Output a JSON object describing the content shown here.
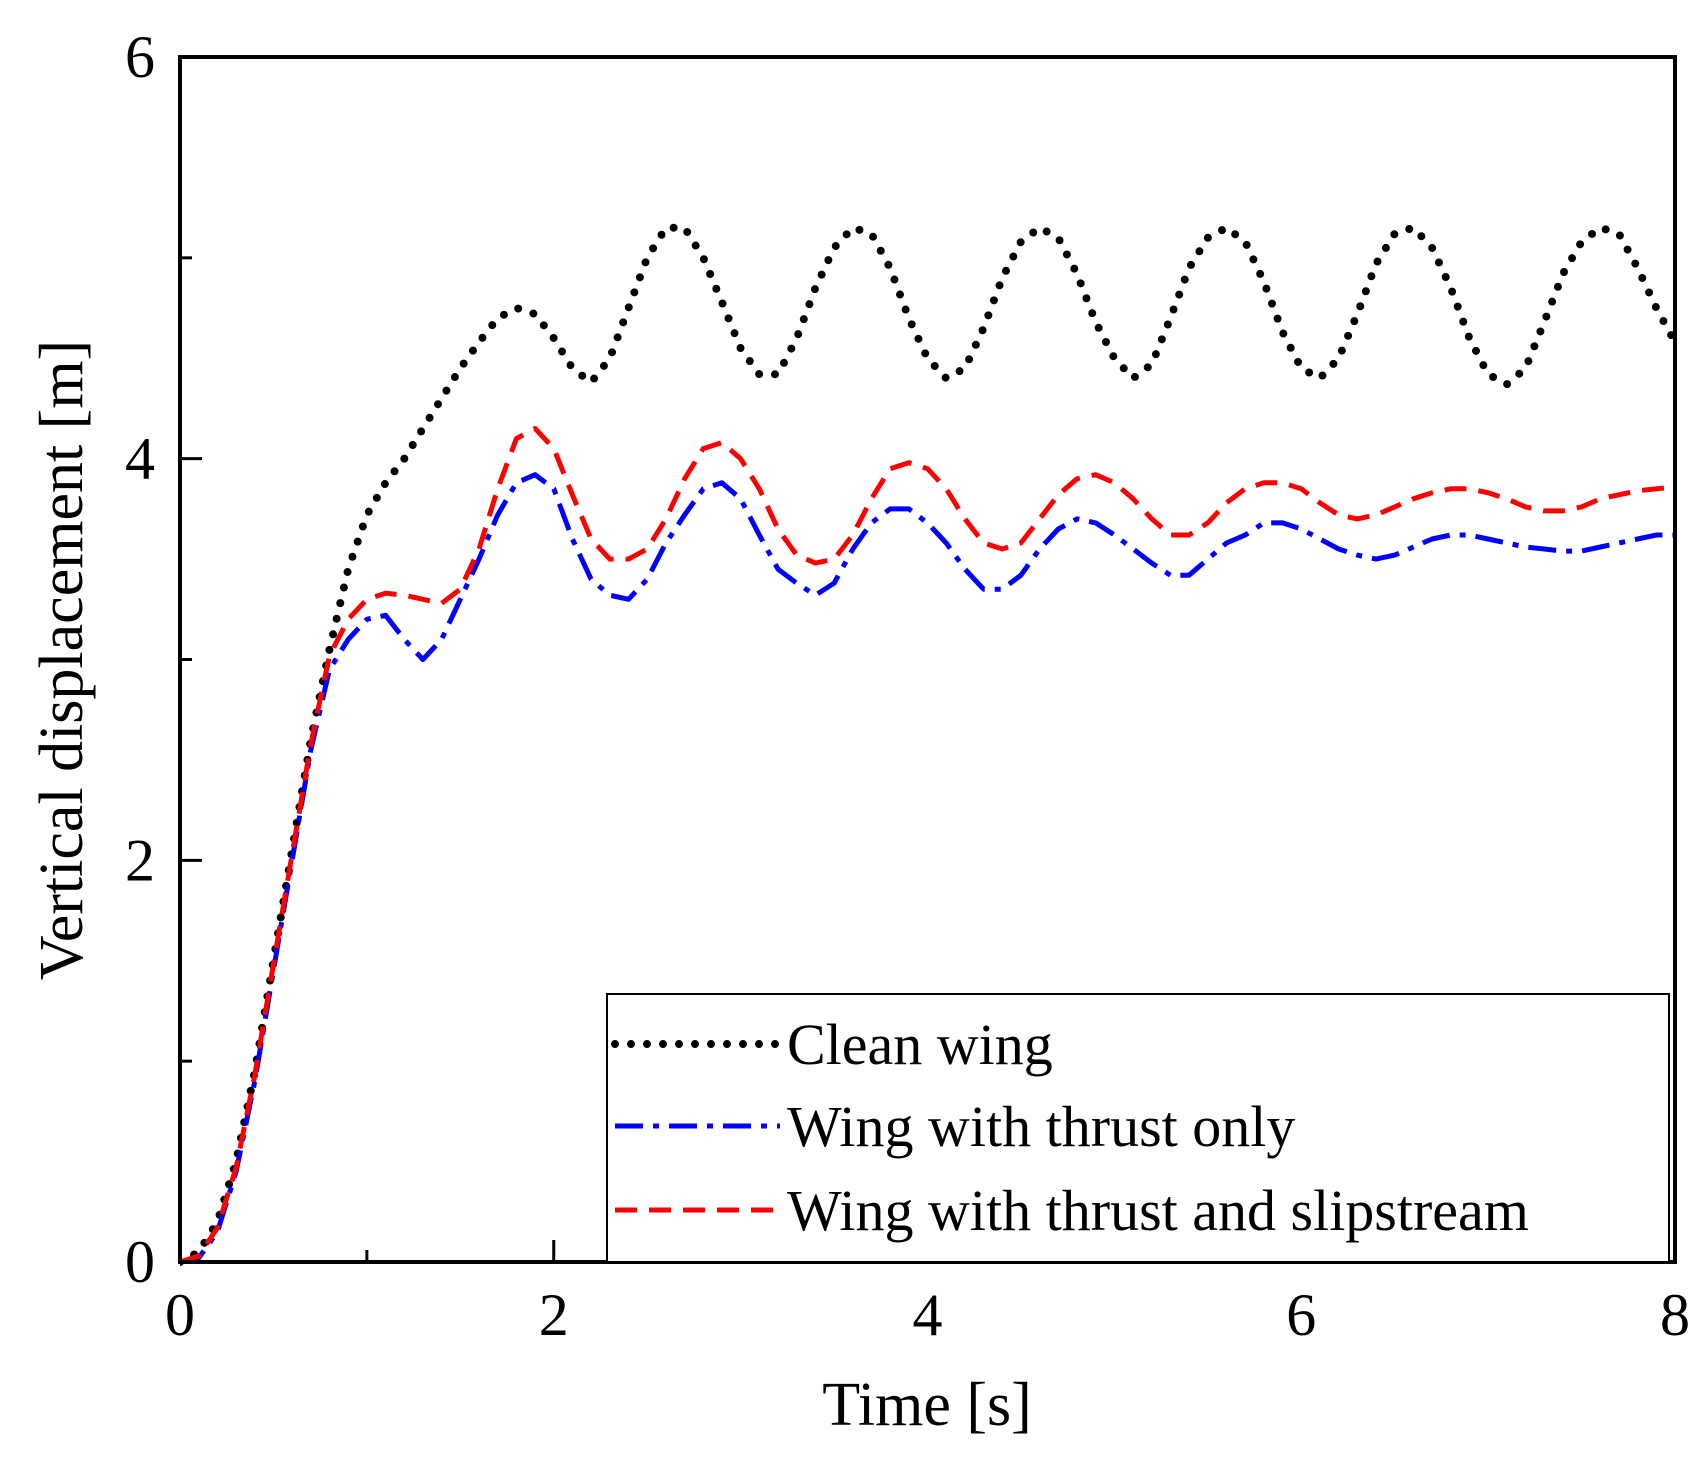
{
  "chart_data": {
    "type": "line",
    "title": "",
    "xlabel": "Time [s]",
    "ylabel": "Vertical displacement [m]",
    "xlim": [
      0,
      8
    ],
    "ylim": [
      0,
      6
    ],
    "xticks": [
      "0",
      "2",
      "4",
      "6",
      "8"
    ],
    "yticks": [
      "0",
      "2",
      "4",
      "6"
    ],
    "grid": false,
    "legend_position": "bottom-right",
    "series": [
      {
        "name": "Clean wing",
        "color": "#000000",
        "style": "dotted",
        "points": [
          [
            0,
            0
          ],
          [
            0.1,
            0.05
          ],
          [
            0.2,
            0.2
          ],
          [
            0.3,
            0.5
          ],
          [
            0.4,
            0.95
          ],
          [
            0.5,
            1.5
          ],
          [
            0.6,
            2.05
          ],
          [
            0.7,
            2.6
          ],
          [
            0.8,
            3.05
          ],
          [
            0.9,
            3.45
          ],
          [
            1.0,
            3.72
          ],
          [
            1.1,
            3.88
          ],
          [
            1.2,
            4.0
          ],
          [
            1.3,
            4.15
          ],
          [
            1.4,
            4.3
          ],
          [
            1.5,
            4.45
          ],
          [
            1.6,
            4.58
          ],
          [
            1.7,
            4.7
          ],
          [
            1.8,
            4.75
          ],
          [
            1.9,
            4.72
          ],
          [
            2.0,
            4.6
          ],
          [
            2.1,
            4.45
          ],
          [
            2.2,
            4.38
          ],
          [
            2.3,
            4.5
          ],
          [
            2.4,
            4.75
          ],
          [
            2.5,
            5.0
          ],
          [
            2.6,
            5.15
          ],
          [
            2.7,
            5.15
          ],
          [
            2.8,
            5.0
          ],
          [
            2.9,
            4.78
          ],
          [
            3.0,
            4.55
          ],
          [
            3.1,
            4.42
          ],
          [
            3.2,
            4.42
          ],
          [
            3.3,
            4.6
          ],
          [
            3.4,
            4.85
          ],
          [
            3.5,
            5.05
          ],
          [
            3.6,
            5.15
          ],
          [
            3.7,
            5.12
          ],
          [
            3.8,
            4.95
          ],
          [
            3.9,
            4.7
          ],
          [
            4.0,
            4.5
          ],
          [
            4.1,
            4.4
          ],
          [
            4.2,
            4.45
          ],
          [
            4.3,
            4.65
          ],
          [
            4.4,
            4.9
          ],
          [
            4.5,
            5.08
          ],
          [
            4.6,
            5.15
          ],
          [
            4.7,
            5.1
          ],
          [
            4.8,
            4.92
          ],
          [
            4.9,
            4.68
          ],
          [
            5.0,
            4.5
          ],
          [
            5.1,
            4.4
          ],
          [
            5.2,
            4.47
          ],
          [
            5.3,
            4.7
          ],
          [
            5.4,
            4.95
          ],
          [
            5.5,
            5.1
          ],
          [
            5.6,
            5.15
          ],
          [
            5.7,
            5.08
          ],
          [
            5.8,
            4.88
          ],
          [
            5.9,
            4.63
          ],
          [
            6.0,
            4.45
          ],
          [
            6.1,
            4.4
          ],
          [
            6.2,
            4.5
          ],
          [
            6.3,
            4.72
          ],
          [
            6.4,
            4.97
          ],
          [
            6.5,
            5.12
          ],
          [
            6.6,
            5.15
          ],
          [
            6.7,
            5.05
          ],
          [
            6.8,
            4.85
          ],
          [
            6.9,
            4.6
          ],
          [
            7.0,
            4.42
          ],
          [
            7.1,
            4.37
          ],
          [
            7.2,
            4.45
          ],
          [
            7.3,
            4.68
          ],
          [
            7.4,
            4.92
          ],
          [
            7.5,
            5.08
          ],
          [
            7.6,
            5.15
          ],
          [
            7.7,
            5.12
          ],
          [
            7.8,
            4.95
          ],
          [
            7.9,
            4.75
          ],
          [
            8.0,
            4.58
          ]
        ]
      },
      {
        "name": "Wing with thrust only",
        "color": "#0000ff",
        "style": "dash-dot",
        "points": [
          [
            0,
            0
          ],
          [
            0.1,
            0.02
          ],
          [
            0.2,
            0.15
          ],
          [
            0.3,
            0.45
          ],
          [
            0.4,
            0.9
          ],
          [
            0.5,
            1.45
          ],
          [
            0.6,
            2.0
          ],
          [
            0.7,
            2.55
          ],
          [
            0.8,
            2.95
          ],
          [
            0.9,
            3.1
          ],
          [
            1.0,
            3.2
          ],
          [
            1.1,
            3.22
          ],
          [
            1.2,
            3.1
          ],
          [
            1.3,
            3.0
          ],
          [
            1.4,
            3.1
          ],
          [
            1.5,
            3.3
          ],
          [
            1.6,
            3.5
          ],
          [
            1.7,
            3.72
          ],
          [
            1.8,
            3.88
          ],
          [
            1.9,
            3.92
          ],
          [
            2.0,
            3.85
          ],
          [
            2.1,
            3.6
          ],
          [
            2.2,
            3.4
          ],
          [
            2.3,
            3.32
          ],
          [
            2.4,
            3.3
          ],
          [
            2.5,
            3.4
          ],
          [
            2.6,
            3.58
          ],
          [
            2.7,
            3.72
          ],
          [
            2.8,
            3.85
          ],
          [
            2.9,
            3.88
          ],
          [
            3.0,
            3.8
          ],
          [
            3.1,
            3.62
          ],
          [
            3.2,
            3.45
          ],
          [
            3.3,
            3.38
          ],
          [
            3.4,
            3.32
          ],
          [
            3.5,
            3.38
          ],
          [
            3.6,
            3.55
          ],
          [
            3.7,
            3.68
          ],
          [
            3.8,
            3.75
          ],
          [
            3.9,
            3.75
          ],
          [
            4.0,
            3.68
          ],
          [
            4.1,
            3.58
          ],
          [
            4.2,
            3.45
          ],
          [
            4.3,
            3.35
          ],
          [
            4.4,
            3.35
          ],
          [
            4.5,
            3.42
          ],
          [
            4.6,
            3.55
          ],
          [
            4.7,
            3.65
          ],
          [
            4.8,
            3.7
          ],
          [
            4.9,
            3.68
          ],
          [
            5.0,
            3.62
          ],
          [
            5.1,
            3.55
          ],
          [
            5.2,
            3.48
          ],
          [
            5.3,
            3.42
          ],
          [
            5.4,
            3.42
          ],
          [
            5.5,
            3.5
          ],
          [
            5.6,
            3.58
          ],
          [
            5.7,
            3.62
          ],
          [
            5.8,
            3.68
          ],
          [
            5.9,
            3.68
          ],
          [
            6.0,
            3.65
          ],
          [
            6.1,
            3.6
          ],
          [
            6.2,
            3.55
          ],
          [
            6.3,
            3.52
          ],
          [
            6.4,
            3.5
          ],
          [
            6.5,
            3.52
          ],
          [
            6.6,
            3.56
          ],
          [
            6.7,
            3.6
          ],
          [
            6.8,
            3.62
          ],
          [
            6.9,
            3.62
          ],
          [
            7.0,
            3.6
          ],
          [
            7.1,
            3.58
          ],
          [
            7.2,
            3.56
          ],
          [
            7.3,
            3.55
          ],
          [
            7.4,
            3.54
          ],
          [
            7.5,
            3.54
          ],
          [
            7.6,
            3.56
          ],
          [
            7.7,
            3.58
          ],
          [
            7.8,
            3.6
          ],
          [
            7.9,
            3.62
          ],
          [
            8.0,
            3.62
          ]
        ]
      },
      {
        "name": "Wing with thrust and slipstream",
        "color": "#ff0000",
        "style": "dashed",
        "points": [
          [
            0,
            0
          ],
          [
            0.1,
            0.03
          ],
          [
            0.2,
            0.17
          ],
          [
            0.3,
            0.47
          ],
          [
            0.4,
            0.93
          ],
          [
            0.5,
            1.48
          ],
          [
            0.6,
            2.03
          ],
          [
            0.7,
            2.58
          ],
          [
            0.8,
            3.02
          ],
          [
            0.9,
            3.2
          ],
          [
            1.0,
            3.3
          ],
          [
            1.1,
            3.33
          ],
          [
            1.2,
            3.32
          ],
          [
            1.3,
            3.3
          ],
          [
            1.4,
            3.28
          ],
          [
            1.5,
            3.35
          ],
          [
            1.6,
            3.55
          ],
          [
            1.7,
            3.85
          ],
          [
            1.8,
            4.1
          ],
          [
            1.9,
            4.15
          ],
          [
            2.0,
            4.05
          ],
          [
            2.1,
            3.82
          ],
          [
            2.2,
            3.6
          ],
          [
            2.3,
            3.5
          ],
          [
            2.4,
            3.5
          ],
          [
            2.5,
            3.55
          ],
          [
            2.6,
            3.7
          ],
          [
            2.7,
            3.9
          ],
          [
            2.8,
            4.05
          ],
          [
            2.9,
            4.08
          ],
          [
            3.0,
            4.0
          ],
          [
            3.1,
            3.85
          ],
          [
            3.2,
            3.65
          ],
          [
            3.3,
            3.52
          ],
          [
            3.4,
            3.48
          ],
          [
            3.5,
            3.5
          ],
          [
            3.6,
            3.62
          ],
          [
            3.7,
            3.8
          ],
          [
            3.8,
            3.95
          ],
          [
            3.9,
            3.98
          ],
          [
            4.0,
            3.95
          ],
          [
            4.1,
            3.85
          ],
          [
            4.2,
            3.7
          ],
          [
            4.3,
            3.58
          ],
          [
            4.4,
            3.55
          ],
          [
            4.5,
            3.58
          ],
          [
            4.6,
            3.7
          ],
          [
            4.7,
            3.82
          ],
          [
            4.8,
            3.9
          ],
          [
            4.9,
            3.92
          ],
          [
            5.0,
            3.88
          ],
          [
            5.1,
            3.8
          ],
          [
            5.2,
            3.7
          ],
          [
            5.3,
            3.62
          ],
          [
            5.4,
            3.62
          ],
          [
            5.5,
            3.68
          ],
          [
            5.6,
            3.78
          ],
          [
            5.7,
            3.85
          ],
          [
            5.8,
            3.88
          ],
          [
            5.9,
            3.88
          ],
          [
            6.0,
            3.85
          ],
          [
            6.1,
            3.78
          ],
          [
            6.2,
            3.72
          ],
          [
            6.3,
            3.7
          ],
          [
            6.4,
            3.72
          ],
          [
            6.5,
            3.76
          ],
          [
            6.6,
            3.8
          ],
          [
            6.7,
            3.83
          ],
          [
            6.8,
            3.85
          ],
          [
            6.9,
            3.85
          ],
          [
            7.0,
            3.83
          ],
          [
            7.1,
            3.8
          ],
          [
            7.2,
            3.76
          ],
          [
            7.3,
            3.74
          ],
          [
            7.4,
            3.74
          ],
          [
            7.5,
            3.76
          ],
          [
            7.6,
            3.8
          ],
          [
            7.7,
            3.82
          ],
          [
            7.8,
            3.84
          ],
          [
            7.9,
            3.85
          ],
          [
            8.0,
            3.86
          ]
        ]
      }
    ]
  }
}
